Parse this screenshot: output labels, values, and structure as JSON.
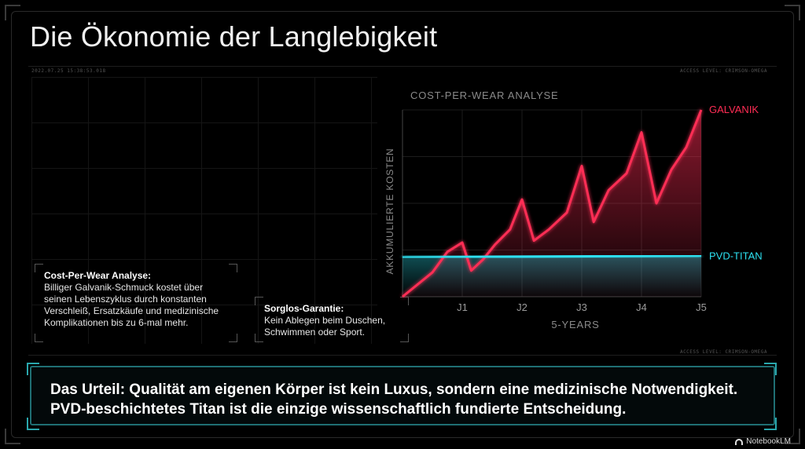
{
  "slide": {
    "title": "Die Ökonomie der Langlebigkeit",
    "hud_timestamp": "2022.07.25 15:38:53.018",
    "hud_access_top": "ACCESS LEVEL: CRIMSON-OMEGA",
    "hud_access_bottom": "ACCESS LEVEL: CRIMSON-OMEGA"
  },
  "info": {
    "cost": {
      "heading": "Cost-Per-Wear Analyse:",
      "body": "Billiger Galvanik-Schmuck kostet über seinen Lebenszyklus durch konstanten Verschleiß, Ersatzkäufe und medizinische Komplikationen bis zu 6-mal mehr."
    },
    "guarantee": {
      "heading": "Sorglos-Garantie:",
      "body": "Kein Ablegen beim Duschen, Schwimmen oder Sport."
    }
  },
  "verdict": {
    "line1": "Das Urteil: Qualität am eigenen Körper ist kein Luxus, sondern eine medizinische Notwendigkeit.",
    "line2": "PVD-beschichtetes Titan ist die einzige wissenschaftlich fundierte Entscheidung."
  },
  "brand": {
    "label": "NotebookLM"
  },
  "colors": {
    "galvanik": "#ff2d55",
    "titan": "#2de0f0",
    "verdict_border": "#1f6f73"
  },
  "chart_data": {
    "type": "line",
    "title": "COST-PER-WEAR ANALYSE",
    "xlabel": "5-YEARS",
    "ylabel": "AKKUMULIERTE KOSTEN",
    "x_ticks": [
      "J1",
      "J2",
      "J3",
      "J4",
      "J5"
    ],
    "xlim": [
      0,
      5
    ],
    "ylim": [
      0,
      100
    ],
    "grid": true,
    "series": [
      {
        "name": "GALVANIK",
        "color": "#ff2d55",
        "x": [
          0,
          0.5,
          0.75,
          1.0,
          1.15,
          1.35,
          1.55,
          1.8,
          2.0,
          2.2,
          2.45,
          2.75,
          3.0,
          3.2,
          3.45,
          3.75,
          4.0,
          4.25,
          4.5,
          4.75,
          5.0
        ],
        "y": [
          0,
          13,
          24,
          29,
          14,
          20,
          28,
          36,
          52,
          30,
          36,
          45,
          70,
          40,
          57,
          66,
          88,
          50,
          68,
          80,
          100
        ]
      },
      {
        "name": "PVD-TITAN",
        "color": "#2de0f0",
        "x": [
          0,
          5
        ],
        "y": [
          21,
          22
        ]
      }
    ]
  }
}
